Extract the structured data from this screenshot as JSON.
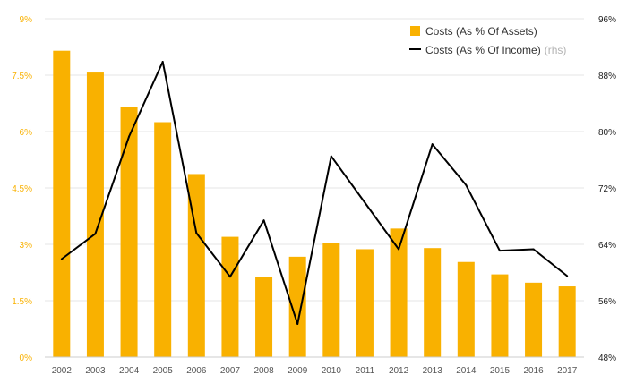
{
  "chart_data": {
    "type": "bar+line",
    "categories": [
      "2002",
      "2003",
      "2004",
      "2005",
      "2006",
      "2007",
      "2008",
      "2009",
      "2010",
      "2011",
      "2012",
      "2013",
      "2014",
      "2015",
      "2016",
      "2017"
    ],
    "series": [
      {
        "name": "Costs (As % Of Assets)",
        "type": "bar",
        "axis": "left",
        "values": [
          8.15,
          7.57,
          6.65,
          6.25,
          4.87,
          3.2,
          2.12,
          2.67,
          3.03,
          2.87,
          3.42,
          2.9,
          2.53,
          2.2,
          1.98,
          1.88
        ]
      },
      {
        "name": "Costs (As % Of Income)",
        "name_suffix": "(rhs)",
        "type": "line",
        "axis": "right",
        "values": [
          61.9,
          65.5,
          79.3,
          89.9,
          65.6,
          59.4,
          67.4,
          52.7,
          76.5,
          69.9,
          63.3,
          78.2,
          72.4,
          63.1,
          63.3,
          59.5
        ]
      }
    ],
    "y_left": {
      "min": 0,
      "max": 9,
      "ticks": [
        0,
        1.5,
        3,
        4.5,
        6,
        7.5,
        9
      ],
      "tick_labels": [
        "0%",
        "1.5%",
        "3%",
        "4.5%",
        "6%",
        "7.5%",
        "9%"
      ]
    },
    "y_right": {
      "min": 48,
      "max": 96,
      "ticks": [
        48,
        56,
        64,
        72,
        80,
        88,
        96
      ],
      "tick_labels": [
        "48%",
        "56%",
        "64%",
        "72%",
        "80%",
        "88%",
        "96%"
      ]
    },
    "legend_position": "top-right",
    "grid": true,
    "colors": {
      "bar": "#f9b100",
      "line": "#000000",
      "left_axis_text": "#f9b100",
      "right_axis_text": "#222222",
      "grid": "#e6e6e6",
      "rhs_note": "#b3b3b3"
    }
  }
}
